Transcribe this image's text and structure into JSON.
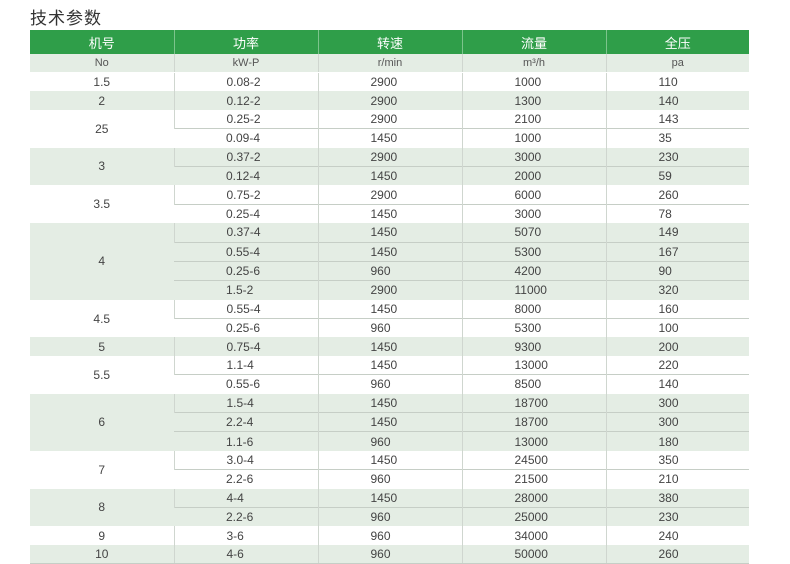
{
  "title": "技术参数",
  "colors": {
    "header_green": "#2f9e49",
    "band_green": "#e4ede4"
  },
  "headers": [
    "机号",
    "功率",
    "转速",
    "流量",
    "全压"
  ],
  "units": [
    "No",
    "kW-P",
    "r/min",
    "m³/h",
    "pa"
  ],
  "groups": [
    {
      "no": "1.5",
      "rows": [
        [
          "0.08-2",
          "2900",
          "1000",
          "110"
        ]
      ]
    },
    {
      "no": "2",
      "rows": [
        [
          "0.12-2",
          "2900",
          "1300",
          "140"
        ]
      ]
    },
    {
      "no": "25",
      "rows": [
        [
          "0.25-2",
          "2900",
          "2100",
          "143"
        ],
        [
          "0.09-4",
          "1450",
          "1000",
          "35"
        ]
      ]
    },
    {
      "no": "3",
      "rows": [
        [
          "0.37-2",
          "2900",
          "3000",
          "230"
        ],
        [
          "0.12-4",
          "1450",
          "2000",
          "59"
        ]
      ]
    },
    {
      "no": "3.5",
      "rows": [
        [
          "0.75-2",
          "2900",
          "6000",
          "260"
        ],
        [
          "0.25-4",
          "1450",
          "3000",
          "78"
        ]
      ]
    },
    {
      "no": "4",
      "rows": [
        [
          "0.37-4",
          "1450",
          "5070",
          "149"
        ],
        [
          "0.55-4",
          "1450",
          "5300",
          "167"
        ],
        [
          "0.25-6",
          "960",
          "4200",
          "90"
        ],
        [
          "1.5-2",
          "2900",
          "11000",
          "320"
        ]
      ]
    },
    {
      "no": "4.5",
      "rows": [
        [
          "0.55-4",
          "1450",
          "8000",
          "160"
        ],
        [
          "0.25-6",
          "960",
          "5300",
          "100"
        ]
      ]
    },
    {
      "no": "5",
      "rows": [
        [
          "0.75-4",
          "1450",
          "9300",
          "200"
        ]
      ]
    },
    {
      "no": "5.5",
      "rows": [
        [
          "1.1-4",
          "1450",
          "13000",
          "220"
        ],
        [
          "0.55-6",
          "960",
          "8500",
          "140"
        ]
      ]
    },
    {
      "no": "6",
      "rows": [
        [
          "1.5-4",
          "1450",
          "18700",
          "300"
        ],
        [
          "2.2-4",
          "1450",
          "18700",
          "300"
        ],
        [
          "1.1-6",
          "960",
          "13000",
          "180"
        ]
      ]
    },
    {
      "no": "7",
      "rows": [
        [
          "3.0-4",
          "1450",
          "24500",
          "350"
        ],
        [
          "2.2-6",
          "960",
          "21500",
          "210"
        ]
      ]
    },
    {
      "no": "8",
      "rows": [
        [
          "4-4",
          "1450",
          "28000",
          "380"
        ],
        [
          "2.2-6",
          "960",
          "25000",
          "230"
        ]
      ]
    },
    {
      "no": "9",
      "rows": [
        [
          "3-6",
          "960",
          "34000",
          "240"
        ]
      ]
    },
    {
      "no": "10",
      "rows": [
        [
          "4-6",
          "960",
          "50000",
          "260"
        ]
      ]
    }
  ]
}
